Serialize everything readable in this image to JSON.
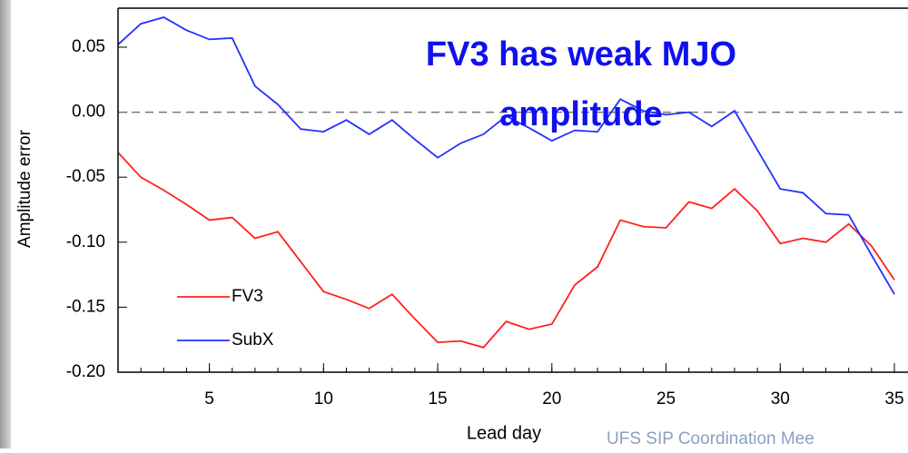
{
  "chart_data": {
    "type": "line",
    "annotation": "FV3 has weak MJO amplitude",
    "xlabel": "Lead day",
    "ylabel": "Amplitude error",
    "footer": "UFS SIP Coordination Mee",
    "x": [
      1,
      2,
      3,
      4,
      5,
      6,
      7,
      8,
      9,
      10,
      11,
      12,
      13,
      14,
      15,
      16,
      17,
      18,
      19,
      20,
      21,
      22,
      23,
      24,
      25,
      26,
      27,
      28,
      29,
      30,
      31,
      32,
      33,
      34,
      35
    ],
    "series": [
      {
        "name": "FV3",
        "color": "#ff2020",
        "values": [
          -0.031,
          -0.05,
          -0.06,
          -0.071,
          -0.083,
          -0.081,
          -0.097,
          -0.092,
          -0.115,
          -0.138,
          -0.144,
          -0.151,
          -0.14,
          -0.159,
          -0.177,
          -0.176,
          -0.181,
          -0.161,
          -0.167,
          -0.163,
          -0.133,
          -0.119,
          -0.083,
          -0.088,
          -0.089,
          -0.069,
          -0.074,
          -0.059,
          -0.076,
          -0.101,
          -0.097,
          -0.1,
          -0.086,
          -0.103,
          -0.129
        ]
      },
      {
        "name": "SubX",
        "color": "#2030ff",
        "values": [
          0.052,
          0.068,
          0.073,
          0.063,
          0.056,
          0.057,
          0.02,
          0.006,
          -0.013,
          -0.015,
          -0.006,
          -0.017,
          -0.006,
          -0.021,
          -0.035,
          -0.024,
          -0.017,
          -0.003,
          -0.012,
          -0.022,
          -0.014,
          -0.015,
          0.01,
          0.001,
          -0.002,
          0.0,
          -0.011,
          0.001,
          -0.029,
          -0.059,
          -0.062,
          -0.078,
          -0.079,
          -0.11,
          -0.14
        ]
      }
    ],
    "xlim": [
      1,
      35
    ],
    "xticks": [
      5,
      10,
      15,
      20,
      25,
      30,
      35
    ],
    "ylim": [
      -0.2,
      0.08
    ],
    "yticks": [
      {
        "value": -0.2,
        "label": "-0.20"
      },
      {
        "value": -0.15,
        "label": "-0.15"
      },
      {
        "value": -0.1,
        "label": "-0.10"
      },
      {
        "value": -0.05,
        "label": "-0.05"
      },
      {
        "value": 0,
        "label": "0.00"
      },
      {
        "value": 0.05,
        "label": "0.05"
      }
    ],
    "hline": 0,
    "legend": "lower left"
  }
}
